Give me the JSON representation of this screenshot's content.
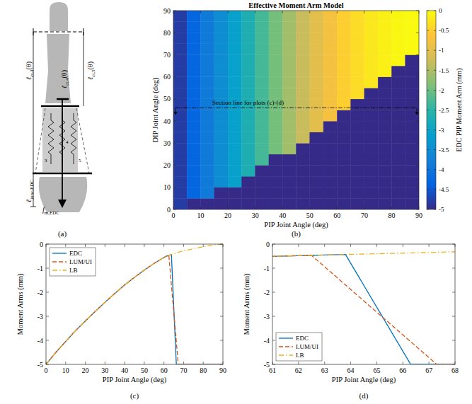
{
  "diagram": {
    "panel": "(a)",
    "labels": [
      {
        "symbol": "ℓ",
        "sub": "ct,3",
        "arg": "(θ)"
      },
      {
        "symbol": "ℓ",
        "sub": "ct,4",
        "arg": "(θ)"
      },
      {
        "symbol": "ℓ",
        "sub": "ct,5",
        "arg": "(θ)"
      },
      {
        "symbol": "ℓ",
        "sub": "junc,EDC"
      },
      {
        "symbol": "f",
        "sub": "m,EDC"
      }
    ],
    "spring_labels": [
      "3",
      "4",
      "5"
    ]
  },
  "chart_data": [
    {
      "type": "heatmap",
      "panel": "(b)",
      "title": "Effective Moment Arm Model",
      "x_label": "PIP Joint Angle (deg)",
      "y_label": "DIP Joint Angle (deg)",
      "xlim": [
        0,
        90
      ],
      "ylim": [
        0,
        90
      ],
      "xticks": [
        0,
        10,
        20,
        30,
        40,
        50,
        60,
        70,
        80,
        90
      ],
      "yticks": [
        0,
        10,
        20,
        30,
        40,
        50,
        60,
        70,
        80,
        90
      ],
      "x_bins": [
        0,
        5,
        10,
        15,
        20,
        25,
        30,
        35,
        40,
        45,
        50,
        55,
        60,
        65,
        70,
        75,
        80,
        85,
        90
      ],
      "y_bins": [
        0,
        5,
        10,
        15,
        20,
        25,
        30,
        35,
        40,
        45,
        50,
        55,
        60,
        65,
        70,
        75,
        80,
        85,
        90
      ],
      "cells": [
        [
          -4.8,
          -5,
          -5,
          -5,
          -5,
          -5,
          -5,
          -5,
          -5,
          -5,
          -5,
          -5,
          -5,
          -5,
          -5,
          -5,
          -5,
          -5
        ],
        [
          -4.8,
          -4.3,
          -3.9,
          -5,
          -5,
          -5,
          -5,
          -5,
          -5,
          -5,
          -5,
          -5,
          -5,
          -5,
          -5,
          -5,
          -5,
          -5
        ],
        [
          -4.8,
          -4.3,
          -3.9,
          -3.5,
          -3.1,
          -5,
          -5,
          -5,
          -5,
          -5,
          -5,
          -5,
          -5,
          -5,
          -5,
          -5,
          -5,
          -5
        ],
        [
          -4.8,
          -4.3,
          -3.9,
          -3.5,
          -3.1,
          -2.7,
          -5,
          -5,
          -5,
          -5,
          -5,
          -5,
          -5,
          -5,
          -5,
          -5,
          -5,
          -5
        ],
        [
          -4.8,
          -4.3,
          -3.9,
          -3.5,
          -3.1,
          -2.7,
          -2.3,
          -5,
          -5,
          -5,
          -5,
          -5,
          -5,
          -5,
          -5,
          -5,
          -5,
          -5
        ],
        [
          -4.8,
          -4.3,
          -3.9,
          -3.5,
          -3.1,
          -2.7,
          -2.3,
          -1.95,
          -1.6,
          -5,
          -5,
          -5,
          -5,
          -5,
          -5,
          -5,
          -5,
          -5
        ],
        [
          -4.8,
          -4.3,
          -3.9,
          -3.5,
          -3.1,
          -2.7,
          -2.3,
          -1.95,
          -1.6,
          -1.3,
          -5,
          -5,
          -5,
          -5,
          -5,
          -5,
          -5,
          -5
        ],
        [
          -4.8,
          -4.3,
          -3.9,
          -3.5,
          -3.1,
          -2.7,
          -2.3,
          -1.95,
          -1.6,
          -1.3,
          -1,
          -5,
          -5,
          -5,
          -5,
          -5,
          -5,
          -5
        ],
        [
          -4.8,
          -4.3,
          -3.9,
          -3.5,
          -3.1,
          -2.7,
          -2.3,
          -1.95,
          -1.6,
          -1.3,
          -1,
          -0.75,
          -5,
          -5,
          -5,
          -5,
          -5,
          -5
        ],
        [
          -4.8,
          -4.3,
          -3.9,
          -3.5,
          -3.1,
          -2.7,
          -2.3,
          -1.95,
          -1.6,
          -1.3,
          -1,
          -0.75,
          -0.5,
          -5,
          -5,
          -5,
          -5,
          -5
        ],
        [
          -4.8,
          -4.3,
          -3.9,
          -3.5,
          -3.1,
          -2.7,
          -2.3,
          -1.95,
          -1.6,
          -1.3,
          -1,
          -0.75,
          -0.5,
          -0.35,
          -5,
          -5,
          -5,
          -5
        ],
        [
          -4.8,
          -4.3,
          -3.9,
          -3.5,
          -3.1,
          -2.7,
          -2.3,
          -1.95,
          -1.6,
          -1.3,
          -1,
          -0.75,
          -0.5,
          -0.35,
          -0.22,
          -5,
          -5,
          -5
        ],
        [
          -4.8,
          -4.3,
          -3.9,
          -3.5,
          -3.1,
          -2.7,
          -2.3,
          -1.95,
          -1.6,
          -1.3,
          -1,
          -0.75,
          -0.5,
          -0.35,
          -0.22,
          -0.12,
          -5,
          -5
        ],
        [
          -4.8,
          -4.3,
          -3.9,
          -3.5,
          -3.1,
          -2.7,
          -2.3,
          -1.95,
          -1.6,
          -1.3,
          -1,
          -0.75,
          -0.5,
          -0.35,
          -0.22,
          -0.12,
          -0.05,
          -5
        ],
        [
          -4.8,
          -4.3,
          -3.9,
          -3.5,
          -3.1,
          -2.7,
          -2.3,
          -1.95,
          -1.6,
          -1.3,
          -1,
          -0.75,
          -0.5,
          -0.35,
          -0.22,
          -0.12,
          -0.05,
          -0.01
        ],
        [
          -4.8,
          -4.3,
          -3.9,
          -3.5,
          -3.1,
          -2.7,
          -2.3,
          -1.95,
          -1.6,
          -1.3,
          -1,
          -0.75,
          -0.5,
          -0.35,
          -0.22,
          -0.12,
          -0.05,
          -0.01
        ],
        [
          -4.8,
          -4.3,
          -3.9,
          -3.5,
          -3.1,
          -2.7,
          -2.3,
          -1.95,
          -1.6,
          -1.3,
          -1,
          -0.75,
          -0.5,
          -0.35,
          -0.22,
          -0.12,
          -0.05,
          -0.01
        ],
        [
          -4.8,
          -4.3,
          -3.9,
          -3.5,
          -3.1,
          -2.7,
          -2.3,
          -1.95,
          -1.6,
          -1.3,
          -1,
          -0.75,
          -0.5,
          -0.35,
          -0.22,
          -0.12,
          -0.05,
          -0.01
        ]
      ],
      "colorbar": {
        "label": "EDC PIP Moment Arm (mm)",
        "lim": [
          -5,
          0
        ],
        "ticks": [
          0,
          -0.5,
          -1,
          -1.5,
          -2,
          -2.5,
          -3,
          -3.5,
          -4,
          -4.5,
          -5
        ]
      },
      "annotations": [
        {
          "text": "Section line for plots (c)-(d)",
          "y": 46
        }
      ]
    },
    {
      "type": "line",
      "panel": "(c)",
      "x_label": "PIP Joint Angle (deg)",
      "y_label": "Moment Arms (mm)",
      "xlim": [
        0,
        90
      ],
      "ylim": [
        -5,
        0
      ],
      "xticks": [
        0,
        10,
        20,
        30,
        40,
        50,
        60,
        70,
        80,
        90
      ],
      "yticks": [
        -5,
        -4,
        -3,
        -2,
        -1,
        0
      ],
      "legend": "upper-left",
      "series": [
        {
          "name": "EDC",
          "color": "#0072bd",
          "line_style": "solid",
          "x": [
            0,
            5,
            10,
            15,
            20,
            25,
            30,
            35,
            40,
            45,
            50,
            55,
            60,
            61,
            62,
            62.5,
            63,
            63.8,
            66.3,
            68,
            70,
            75,
            80,
            85,
            90
          ],
          "values": [
            -5,
            -4.5,
            -4.05,
            -3.6,
            -3.2,
            -2.8,
            -2.42,
            -2.05,
            -1.7,
            -1.38,
            -1.08,
            -0.8,
            -0.56,
            -0.51,
            -0.48,
            -0.47,
            -0.45,
            -0.43,
            -5,
            -5,
            -5,
            -5,
            -5,
            -5,
            -5
          ]
        },
        {
          "name": "LUM/UI",
          "color": "#d95319",
          "line_style": "dashed",
          "x": [
            0,
            5,
            10,
            15,
            20,
            25,
            30,
            35,
            40,
            45,
            50,
            55,
            60,
            61,
            62,
            62.5,
            67.3,
            68,
            70,
            75,
            80,
            85,
            90
          ],
          "values": [
            -5,
            -4.5,
            -4.05,
            -3.6,
            -3.2,
            -2.8,
            -2.42,
            -2.05,
            -1.7,
            -1.38,
            -1.08,
            -0.8,
            -0.56,
            -0.51,
            -0.48,
            -0.47,
            -5,
            -5,
            -5,
            -5,
            -5,
            -5,
            -5
          ]
        },
        {
          "name": "LB",
          "color": "#edb120",
          "line_style": "dash-dot",
          "x": [
            0,
            5,
            10,
            15,
            20,
            25,
            30,
            35,
            40,
            45,
            50,
            55,
            60,
            61,
            62,
            62.5,
            63,
            63.8,
            65,
            66.3,
            67.3,
            68,
            70,
            75,
            80,
            85,
            90
          ],
          "values": [
            -5,
            -4.5,
            -4.05,
            -3.6,
            -3.2,
            -2.8,
            -2.42,
            -2.05,
            -1.7,
            -1.38,
            -1.08,
            -0.8,
            -0.56,
            -0.51,
            -0.48,
            -0.47,
            -0.45,
            -0.43,
            -0.4,
            -0.37,
            -0.34,
            -0.32,
            -0.28,
            -0.19,
            -0.11,
            -0.04,
            0
          ]
        }
      ]
    },
    {
      "type": "line",
      "panel": "(d)",
      "x_label": "PIP Joint Angle (deg)",
      "y_label": "Moment Arms (mm)",
      "xlim": [
        61,
        68
      ],
      "ylim": [
        -5,
        0
      ],
      "xticks": [
        61,
        62,
        63,
        64,
        65,
        66,
        67,
        68
      ],
      "yticks": [
        -5,
        -4,
        -3,
        -2,
        -1,
        0
      ],
      "legend": "lower-left",
      "series": [
        {
          "name": "EDC",
          "color": "#0072bd",
          "line_style": "solid",
          "x": [
            60,
            61,
            62,
            62.5,
            63,
            63.8,
            66.3,
            68,
            70
          ],
          "values": [
            -0.56,
            -0.51,
            -0.48,
            -0.47,
            -0.45,
            -0.43,
            -5,
            -5,
            -5
          ]
        },
        {
          "name": "LUM/UI",
          "color": "#d95319",
          "line_style": "dashed",
          "x": [
            60,
            61,
            62,
            62.5,
            67.3,
            68,
            70
          ],
          "values": [
            -0.56,
            -0.51,
            -0.48,
            -0.47,
            -5,
            -5,
            -5
          ]
        },
        {
          "name": "LB",
          "color": "#edb120",
          "line_style": "dash-dot",
          "x": [
            60,
            61,
            62,
            62.5,
            63,
            63.8,
            65,
            66.3,
            67.3,
            68,
            70
          ],
          "values": [
            -0.56,
            -0.51,
            -0.48,
            -0.47,
            -0.45,
            -0.43,
            -0.4,
            -0.37,
            -0.34,
            -0.32,
            -0.28
          ]
        }
      ]
    }
  ]
}
